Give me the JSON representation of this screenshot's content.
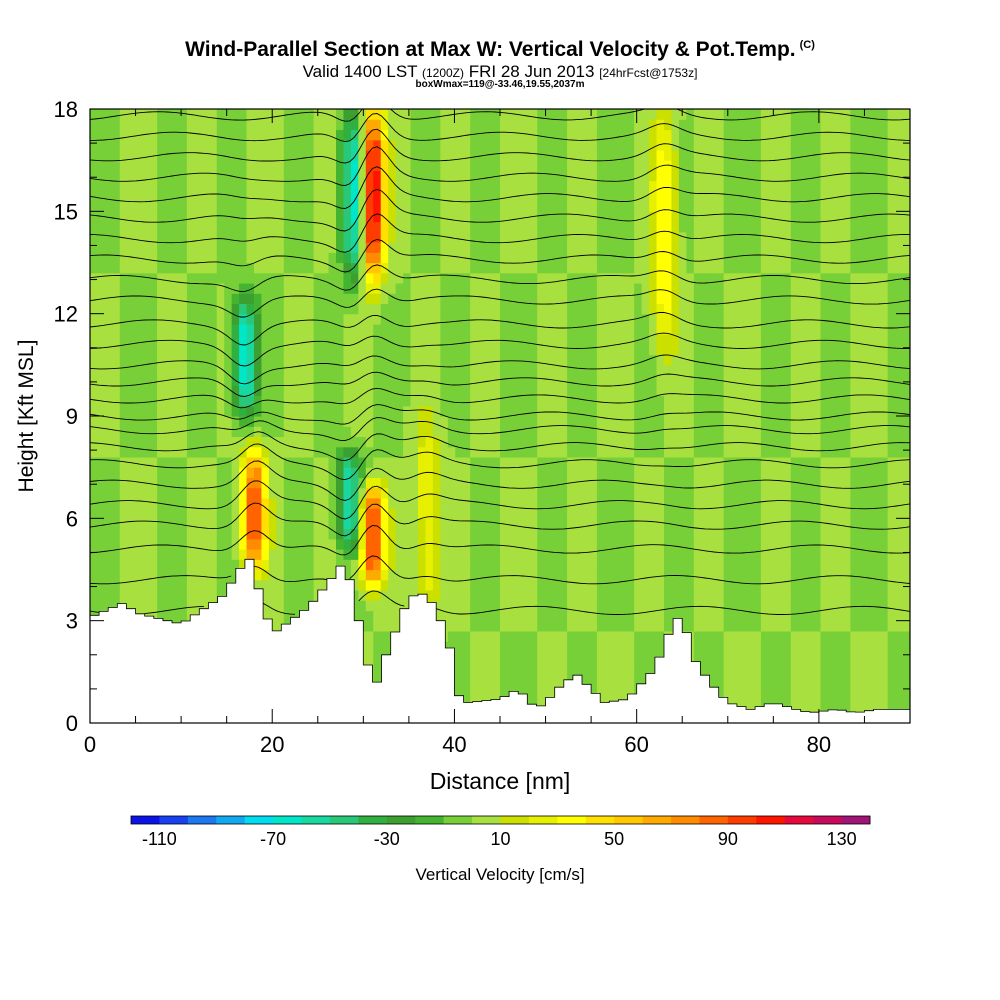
{
  "title": {
    "main": "Wind-Parallel Section at Max W: Vertical Velocity & Pot.Temp.",
    "tag": "(C)",
    "valid_prefix": "Valid 1400 LST",
    "valid_utc": "(1200Z)",
    "valid_date": "FRI 28 Jun 2013",
    "forecast": "[24hrFcst@1753z]",
    "box_info": "boxWmax=119@-33.46,19.55,2037m"
  },
  "chart_data": {
    "type": "heatmap",
    "xlabel": "Distance [nm]",
    "ylabel": "Height [Kft MSL]",
    "xlim": [
      0,
      90
    ],
    "ylim": [
      0,
      18
    ],
    "xticks": [
      0,
      20,
      40,
      60,
      80
    ],
    "yticks": [
      0,
      3,
      6,
      9,
      12,
      15,
      18
    ],
    "colorbar": {
      "label": "Vertical Velocity [cm/s]",
      "tick_labels": [
        "-110",
        "-70",
        "-30",
        "10",
        "50",
        "90",
        "130"
      ],
      "levels": [
        -120,
        -110,
        -100,
        -90,
        -80,
        -70,
        -60,
        -50,
        -40,
        -30,
        -20,
        -10,
        0,
        10,
        20,
        30,
        40,
        50,
        60,
        70,
        80,
        90,
        100,
        110,
        120,
        130,
        140
      ],
      "colors": [
        "#0a12e6",
        "#1640f0",
        "#1c78f0",
        "#12a8f0",
        "#00dcf0",
        "#00e6c8",
        "#18d8a0",
        "#28c878",
        "#30b040",
        "#3ca030",
        "#44b430",
        "#78d038",
        "#a8e040",
        "#cce000",
        "#e6f000",
        "#ffff00",
        "#ffe000",
        "#ffc800",
        "#ffaa00",
        "#ff8c00",
        "#ff6400",
        "#ff3c00",
        "#ff1400",
        "#e60a3c",
        "#c80a5a",
        "#a01478"
      ]
    },
    "background_w_cm_s": 0,
    "updraft_cores": [
      {
        "x": 18,
        "y_bottom": 4.5,
        "y_top": 8,
        "peak_w": 90
      },
      {
        "x": 31,
        "y_bottom": 4,
        "y_top": 7,
        "peak_w": 100
      },
      {
        "x": 31,
        "y_bottom": 13,
        "y_top": 18,
        "peak_w": 119
      },
      {
        "x": 63,
        "y_bottom": 11,
        "y_top": 18,
        "peak_w": 40
      },
      {
        "x": 37,
        "y_bottom": 3,
        "y_top": 9,
        "peak_w": 30
      }
    ],
    "downdraft_cores": [
      {
        "x": 17,
        "y_bottom": 9,
        "y_top": 12.5,
        "peak_w": -70
      },
      {
        "x": 28.5,
        "y_bottom": 5,
        "y_top": 8,
        "peak_w": -60
      },
      {
        "x": 29,
        "y_bottom": 13,
        "y_top": 18,
        "peak_w": -70
      }
    ],
    "terrain_kft": {
      "x": [
        0,
        3.5,
        5.5,
        10,
        15,
        16,
        17.5,
        19,
        20,
        21,
        22,
        24,
        25.5,
        27,
        28,
        29.5,
        30.5,
        31.5,
        32.5,
        34,
        35,
        37,
        38.5,
        39.5,
        40,
        40.5,
        41.5,
        45,
        47,
        49,
        50,
        52,
        53.5,
        55,
        56.5,
        59,
        62,
        63.5,
        65,
        66,
        68,
        70,
        72.5,
        75,
        77.5,
        79,
        82,
        84,
        86.5,
        90
      ],
      "y": [
        3.1,
        3.5,
        3.2,
        2.9,
        3.8,
        4.4,
        4.8,
        3.5,
        2.6,
        2.8,
        3.0,
        3.4,
        3.9,
        4.4,
        4.8,
        3.0,
        1.7,
        1.2,
        2.0,
        3.0,
        3.7,
        3.8,
        3.0,
        2.2,
        1.3,
        0.8,
        0.6,
        0.7,
        1.0,
        0.4,
        0.6,
        1.2,
        1.4,
        1.0,
        0.6,
        0.7,
        1.6,
        2.6,
        3.3,
        2.0,
        1.2,
        0.6,
        0.4,
        0.6,
        0.4,
        0.3,
        0.4,
        0.3,
        0.4,
        0.4
      ]
    },
    "theta_contours": {
      "interval_c": 1,
      "base_levels_kft": [
        3.3,
        4.2,
        5.1,
        5.8,
        6.4,
        7.0,
        7.6,
        8.1,
        8.6,
        9.0,
        9.5,
        10.0,
        10.5,
        11.1,
        11.7,
        12.4,
        13.0,
        13.6,
        14.2,
        14.8,
        15.4,
        16.0,
        16.6,
        17.2,
        17.8
      ]
    }
  }
}
